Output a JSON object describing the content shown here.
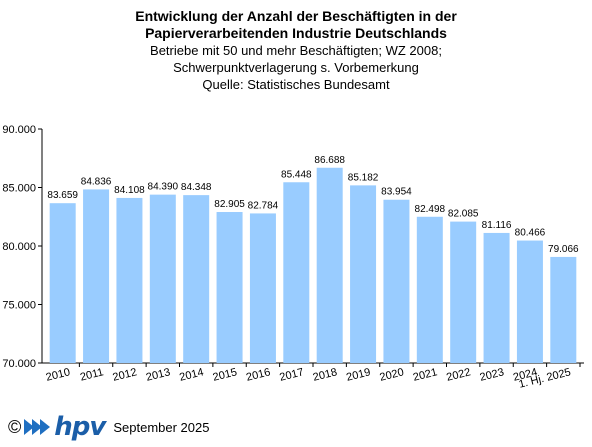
{
  "title": {
    "line1": "Entwicklung der Anzahl der Beschäftigten in der",
    "line2": "Papierverarbeitenden Industrie Deutschlands",
    "line3": "Betriebe mit 50 und mehr Beschäftigten; WZ 2008;",
    "line4": "Schwerpunktverlagerung s. Vorbemerkung",
    "line5": "Quelle: Statistisches Bundesamt"
  },
  "footer": {
    "copyright": "©",
    "brand": "hpv",
    "date": "September 2025"
  },
  "colors": {
    "bar": "#99ccff",
    "logo": "#1f6fc1"
  },
  "chart_data": {
    "type": "bar",
    "categories": [
      "2010",
      "2011",
      "2012",
      "2013",
      "2014",
      "2015",
      "2016",
      "2017",
      "2018",
      "2019",
      "2020",
      "2021",
      "2022",
      "2023",
      "2024",
      "1. Hj. 2025"
    ],
    "values": [
      83659,
      84836,
      84108,
      84390,
      84348,
      82905,
      82784,
      85448,
      86688,
      85182,
      83954,
      82498,
      82085,
      81116,
      80466,
      79066
    ],
    "data_labels": [
      "83.659",
      "84.836",
      "84.108",
      "84.390",
      "84.348",
      "82.905",
      "82.784",
      "85.448",
      "86.688",
      "85.182",
      "83.954",
      "82.498",
      "82.085",
      "81.116",
      "80.466",
      "79.066"
    ],
    "yticks": [
      "70.000",
      "75.000",
      "80.000",
      "85.000",
      "90.000"
    ],
    "ylim": [
      70000,
      90000
    ],
    "grid": false
  }
}
